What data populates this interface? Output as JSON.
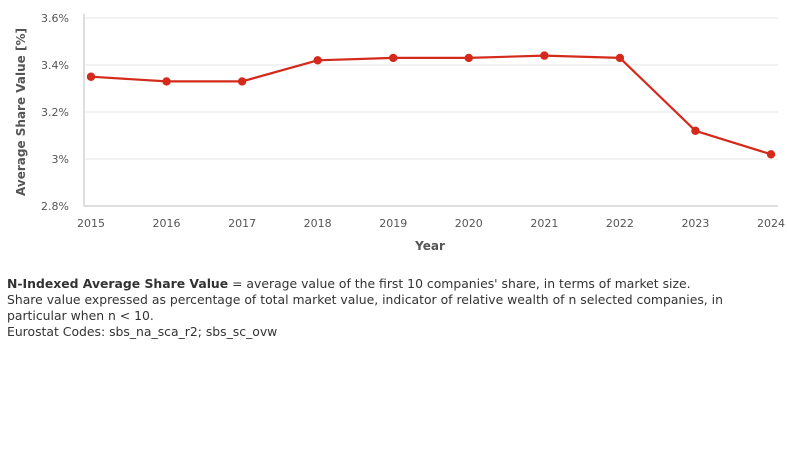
{
  "chart_data": {
    "type": "line",
    "title": "",
    "xlabel": "Year",
    "ylabel": "Average Share Value [%]",
    "x": [
      "2015",
      "2016",
      "2017",
      "2018",
      "2019",
      "2020",
      "2021",
      "2022",
      "2023",
      "2024"
    ],
    "series": [
      {
        "values": [
          3.35,
          3.33,
          3.33,
          3.42,
          3.43,
          3.43,
          3.44,
          3.43,
          3.12,
          3.02
        ]
      }
    ],
    "ylim": [
      2.8,
      3.6
    ],
    "yticks": [
      2.8,
      3.0,
      3.2,
      3.4,
      3.6
    ],
    "ytick_labels": [
      "2.8%",
      "3%",
      "3.2%",
      "3.4%",
      "3.6%"
    ],
    "grid": "horizontal",
    "legend": "none",
    "colors": {
      "line": "#d42a1c",
      "grid": "#e6e6e6",
      "axis": "#dedede"
    }
  },
  "notes": {
    "definition_term": "N-Indexed Average Share Value",
    "definition_text": " = average value of the first 10 companies' share, in terms of market size.",
    "explanation": "Share value expressed as percentage of total market value, indicator of relative wealth of n selected companies, in particular when n < 10.",
    "codes": "Eurostat Codes: sbs_na_sca_r2; sbs_sc_ovw"
  }
}
